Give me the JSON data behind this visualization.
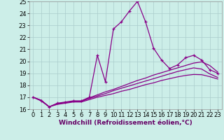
{
  "xlabel": "Windchill (Refroidissement éolien,°C)",
  "background_color": "#cceee8",
  "grid_color": "#aacccc",
  "line_color": "#880088",
  "x_data": [
    0,
    1,
    2,
    3,
    4,
    5,
    6,
    7,
    8,
    9,
    10,
    11,
    12,
    13,
    14,
    15,
    16,
    17,
    18,
    19,
    20,
    21,
    22,
    23
  ],
  "zigzag_y": [
    17.0,
    16.7,
    16.2,
    16.5,
    16.6,
    16.7,
    16.7,
    17.0,
    20.5,
    18.3,
    22.7,
    23.3,
    24.2,
    25.0,
    23.3,
    21.1,
    20.1,
    19.4,
    19.7,
    20.3,
    20.5,
    20.1,
    19.3,
    19.0
  ],
  "line1_y": [
    17.0,
    16.75,
    16.2,
    16.45,
    16.55,
    16.65,
    16.65,
    16.95,
    17.2,
    17.45,
    17.65,
    17.9,
    18.15,
    18.4,
    18.6,
    18.85,
    19.05,
    19.25,
    19.45,
    19.65,
    19.85,
    19.95,
    19.65,
    19.1
  ],
  "line2_y": [
    17.0,
    16.75,
    16.2,
    16.45,
    16.55,
    16.65,
    16.65,
    16.9,
    17.1,
    17.3,
    17.55,
    17.75,
    17.95,
    18.15,
    18.35,
    18.55,
    18.75,
    18.95,
    19.15,
    19.3,
    19.45,
    19.35,
    18.95,
    18.65
  ],
  "line3_y": [
    17.0,
    16.7,
    16.2,
    16.4,
    16.5,
    16.6,
    16.6,
    16.8,
    17.0,
    17.15,
    17.3,
    17.5,
    17.65,
    17.85,
    18.05,
    18.2,
    18.4,
    18.55,
    18.7,
    18.82,
    18.9,
    18.88,
    18.72,
    18.52
  ],
  "ylim": [
    16.0,
    25.0
  ],
  "xlim_min": -0.5,
  "xlim_max": 23.5,
  "yticks": [
    16,
    17,
    18,
    19,
    20,
    21,
    22,
    23,
    24,
    25
  ],
  "xticks": [
    0,
    1,
    2,
    3,
    4,
    5,
    6,
    7,
    8,
    9,
    10,
    11,
    12,
    13,
    14,
    15,
    16,
    17,
    18,
    19,
    20,
    21,
    22,
    23
  ],
  "tick_fontsize": 6,
  "xlabel_fontsize": 6.5
}
